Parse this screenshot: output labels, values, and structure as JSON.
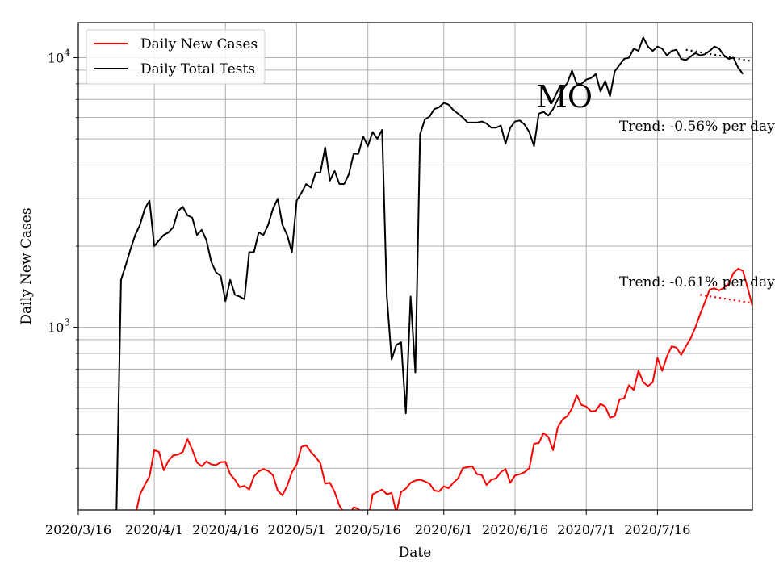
{
  "chart_data": {
    "type": "line",
    "title": "MO",
    "xlabel": "Date",
    "ylabel": "Daily New Cases",
    "yscale": "log",
    "ylim": [
      210,
      13500
    ],
    "xlim": [
      "2020-03-16",
      "2020-08-05"
    ],
    "grid": true,
    "legend_position": "top-left",
    "x_ticks": [
      "2020/3/16",
      "2020/4/1",
      "2020/4/16",
      "2020/5/1",
      "2020/5/16",
      "2020/6/1",
      "2020/6/16",
      "2020/7/1",
      "2020/7/16"
    ],
    "y_ticks": [
      {
        "value": 1000,
        "base": "10",
        "exp": "3"
      },
      {
        "value": 10000,
        "base": "10",
        "exp": "4"
      }
    ],
    "annotations": [
      {
        "text": "Trend: -0.56% per day",
        "anchor_date": "2020-07-24",
        "anchor_value": 4950
      },
      {
        "text": "Trend: -0.61% per day",
        "anchor_date": "2020-07-24",
        "anchor_value": 1150
      }
    ],
    "series": [
      {
        "name": "Daily New Cases",
        "color": "#ff0000",
        "points": [
          [
            "2020-03-28",
            200
          ],
          [
            "2020-03-29",
            240
          ],
          [
            "2020-03-30",
            260
          ],
          [
            "2020-03-31",
            280
          ],
          [
            "2020-04-01",
            350
          ],
          [
            "2020-04-02",
            345
          ],
          [
            "2020-04-03",
            295
          ],
          [
            "2020-04-04",
            320
          ],
          [
            "2020-04-05",
            335
          ],
          [
            "2020-04-06",
            337
          ],
          [
            "2020-04-07",
            345
          ],
          [
            "2020-04-08",
            385
          ],
          [
            "2020-04-09",
            352
          ],
          [
            "2020-04-10",
            315
          ],
          [
            "2020-04-11",
            305
          ],
          [
            "2020-04-12",
            318
          ],
          [
            "2020-04-13",
            310
          ],
          [
            "2020-04-14",
            308
          ],
          [
            "2020-04-15",
            316
          ],
          [
            "2020-04-16",
            317
          ],
          [
            "2020-04-17",
            285
          ],
          [
            "2020-04-18",
            272
          ],
          [
            "2020-04-19",
            255
          ],
          [
            "2020-04-20",
            258
          ],
          [
            "2020-04-21",
            250
          ],
          [
            "2020-04-22",
            280
          ],
          [
            "2020-04-23",
            292
          ],
          [
            "2020-04-24",
            298
          ],
          [
            "2020-04-25",
            293
          ],
          [
            "2020-04-26",
            283
          ],
          [
            "2020-04-27",
            248
          ],
          [
            "2020-04-28",
            238
          ],
          [
            "2020-04-29",
            258
          ],
          [
            "2020-04-30",
            290
          ],
          [
            "2020-05-01",
            310
          ],
          [
            "2020-05-02",
            360
          ],
          [
            "2020-05-03",
            365
          ],
          [
            "2020-05-04",
            345
          ],
          [
            "2020-05-05",
            330
          ],
          [
            "2020-05-06",
            313
          ],
          [
            "2020-05-07",
            263
          ],
          [
            "2020-05-08",
            265
          ],
          [
            "2020-05-09",
            245
          ],
          [
            "2020-05-10",
            218
          ],
          [
            "2020-05-11",
            205
          ],
          [
            "2020-05-12",
            200
          ],
          [
            "2020-05-13",
            215
          ],
          [
            "2020-05-14",
            212
          ],
          [
            "2020-05-15",
            198
          ],
          [
            "2020-05-16",
            190
          ],
          [
            "2020-05-17",
            240
          ],
          [
            "2020-05-18",
            245
          ],
          [
            "2020-05-19",
            250
          ],
          [
            "2020-05-20",
            240
          ],
          [
            "2020-05-21",
            243
          ],
          [
            "2020-05-22",
            205
          ],
          [
            "2020-05-23",
            245
          ],
          [
            "2020-05-24",
            252
          ],
          [
            "2020-05-25",
            265
          ],
          [
            "2020-05-26",
            270
          ],
          [
            "2020-05-27",
            272
          ],
          [
            "2020-05-28",
            268
          ],
          [
            "2020-05-29",
            263
          ],
          [
            "2020-05-30",
            248
          ],
          [
            "2020-05-31",
            246
          ],
          [
            "2020-06-01",
            257
          ],
          [
            "2020-06-02",
            253
          ],
          [
            "2020-06-03",
            265
          ],
          [
            "2020-06-04",
            275
          ],
          [
            "2020-06-05",
            300
          ],
          [
            "2020-06-06",
            303
          ],
          [
            "2020-06-07",
            305
          ],
          [
            "2020-06-08",
            285
          ],
          [
            "2020-06-09",
            283
          ],
          [
            "2020-06-10",
            260
          ],
          [
            "2020-06-11",
            272
          ],
          [
            "2020-06-12",
            275
          ],
          [
            "2020-06-13",
            290
          ],
          [
            "2020-06-14",
            298
          ],
          [
            "2020-06-15",
            265
          ],
          [
            "2020-06-16",
            282
          ],
          [
            "2020-06-17",
            285
          ],
          [
            "2020-06-18",
            290
          ],
          [
            "2020-06-19",
            300
          ],
          [
            "2020-06-20",
            370
          ],
          [
            "2020-06-21",
            372
          ],
          [
            "2020-06-22",
            405
          ],
          [
            "2020-06-23",
            392
          ],
          [
            "2020-06-24",
            350
          ],
          [
            "2020-06-25",
            425
          ],
          [
            "2020-06-26",
            455
          ],
          [
            "2020-06-27",
            468
          ],
          [
            "2020-06-28",
            500
          ],
          [
            "2020-06-29",
            560
          ],
          [
            "2020-06-30",
            515
          ],
          [
            "2020-07-01",
            508
          ],
          [
            "2020-07-02",
            488
          ],
          [
            "2020-07-03",
            490
          ],
          [
            "2020-07-04",
            520
          ],
          [
            "2020-07-05",
            508
          ],
          [
            "2020-07-06",
            462
          ],
          [
            "2020-07-07",
            468
          ],
          [
            "2020-07-08",
            540
          ],
          [
            "2020-07-09",
            545
          ],
          [
            "2020-07-10",
            610
          ],
          [
            "2020-07-11",
            585
          ],
          [
            "2020-07-12",
            690
          ],
          [
            "2020-07-13",
            625
          ],
          [
            "2020-07-14",
            605
          ],
          [
            "2020-07-15",
            625
          ],
          [
            "2020-07-16",
            770
          ],
          [
            "2020-07-17",
            690
          ],
          [
            "2020-07-18",
            780
          ],
          [
            "2020-07-19",
            850
          ],
          [
            "2020-07-20",
            840
          ],
          [
            "2020-07-21",
            790
          ],
          [
            "2020-07-22",
            850
          ],
          [
            "2020-07-23",
            910
          ],
          [
            "2020-07-24",
            1000
          ],
          [
            "2020-07-25",
            1120
          ],
          [
            "2020-07-26",
            1240
          ],
          [
            "2020-07-27",
            1380
          ],
          [
            "2020-07-28",
            1395
          ],
          [
            "2020-07-29",
            1370
          ],
          [
            "2020-07-30",
            1400
          ],
          [
            "2020-07-31",
            1450
          ],
          [
            "2020-08-01",
            1590
          ],
          [
            "2020-08-02",
            1650
          ],
          [
            "2020-08-03",
            1620
          ],
          [
            "2020-08-04",
            1400
          ],
          [
            "2020-08-05",
            1200
          ],
          [
            "2020-08-06",
            1050
          ],
          [
            "2020-08-07",
            950
          ],
          [
            "2020-08-08",
            950
          ]
        ]
      },
      {
        "name": "Daily Total Tests",
        "color": "#000000",
        "points": [
          [
            "2020-03-24",
            190
          ],
          [
            "2020-03-25",
            1500
          ],
          [
            "2020-03-26",
            1700
          ],
          [
            "2020-03-27",
            1950
          ],
          [
            "2020-03-28",
            2200
          ],
          [
            "2020-03-29",
            2400
          ],
          [
            "2020-03-30",
            2750
          ],
          [
            "2020-03-31",
            2950
          ],
          [
            "2020-04-01",
            2000
          ],
          [
            "2020-04-02",
            2100
          ],
          [
            "2020-04-03",
            2200
          ],
          [
            "2020-04-04",
            2250
          ],
          [
            "2020-04-05",
            2350
          ],
          [
            "2020-04-06",
            2700
          ],
          [
            "2020-04-07",
            2800
          ],
          [
            "2020-04-08",
            2600
          ],
          [
            "2020-04-09",
            2550
          ],
          [
            "2020-04-10",
            2200
          ],
          [
            "2020-04-11",
            2300
          ],
          [
            "2020-04-12",
            2100
          ],
          [
            "2020-04-13",
            1750
          ],
          [
            "2020-04-14",
            1600
          ],
          [
            "2020-04-15",
            1550
          ],
          [
            "2020-04-16",
            1250
          ],
          [
            "2020-04-17",
            1500
          ],
          [
            "2020-04-18",
            1320
          ],
          [
            "2020-04-19",
            1300
          ],
          [
            "2020-04-20",
            1270
          ],
          [
            "2020-04-21",
            1900
          ],
          [
            "2020-04-22",
            1900
          ],
          [
            "2020-04-23",
            2250
          ],
          [
            "2020-04-24",
            2200
          ],
          [
            "2020-04-25",
            2400
          ],
          [
            "2020-04-26",
            2750
          ],
          [
            "2020-04-27",
            3000
          ],
          [
            "2020-04-28",
            2400
          ],
          [
            "2020-04-29",
            2200
          ],
          [
            "2020-04-30",
            1900
          ],
          [
            "2020-05-01",
            2950
          ],
          [
            "2020-05-02",
            3150
          ],
          [
            "2020-05-03",
            3400
          ],
          [
            "2020-05-04",
            3300
          ],
          [
            "2020-05-05",
            3750
          ],
          [
            "2020-05-06",
            3750
          ],
          [
            "2020-05-07",
            4650
          ],
          [
            "2020-05-08",
            3500
          ],
          [
            "2020-05-09",
            3800
          ],
          [
            "2020-05-10",
            3400
          ],
          [
            "2020-05-11",
            3400
          ],
          [
            "2020-05-12",
            3700
          ],
          [
            "2020-05-13",
            4400
          ],
          [
            "2020-05-14",
            4400
          ],
          [
            "2020-05-15",
            5100
          ],
          [
            "2020-05-16",
            4700
          ],
          [
            "2020-05-17",
            5300
          ],
          [
            "2020-05-18",
            5000
          ],
          [
            "2020-05-19",
            5400
          ],
          [
            "2020-05-20",
            1300
          ],
          [
            "2020-05-21",
            760
          ],
          [
            "2020-05-22",
            860
          ],
          [
            "2020-05-23",
            880
          ],
          [
            "2020-05-24",
            480
          ],
          [
            "2020-05-25",
            1300
          ],
          [
            "2020-05-26",
            680
          ],
          [
            "2020-05-27",
            5200
          ],
          [
            "2020-05-28",
            5900
          ],
          [
            "2020-05-29",
            6050
          ],
          [
            "2020-05-30",
            6450
          ],
          [
            "2020-05-31",
            6550
          ],
          [
            "2020-06-01",
            6800
          ],
          [
            "2020-06-02",
            6700
          ],
          [
            "2020-06-03",
            6400
          ],
          [
            "2020-06-04",
            6200
          ],
          [
            "2020-06-05",
            6000
          ],
          [
            "2020-06-06",
            5750
          ],
          [
            "2020-06-07",
            5750
          ],
          [
            "2020-06-08",
            5750
          ],
          [
            "2020-06-09",
            5800
          ],
          [
            "2020-06-10",
            5700
          ],
          [
            "2020-06-11",
            5500
          ],
          [
            "2020-06-12",
            5500
          ],
          [
            "2020-06-13",
            5600
          ],
          [
            "2020-06-14",
            4800
          ],
          [
            "2020-06-15",
            5500
          ],
          [
            "2020-06-16",
            5800
          ],
          [
            "2020-06-17",
            5850
          ],
          [
            "2020-06-18",
            5650
          ],
          [
            "2020-06-19",
            5300
          ],
          [
            "2020-06-20",
            4700
          ],
          [
            "2020-06-21",
            6200
          ],
          [
            "2020-06-22",
            6300
          ],
          [
            "2020-06-23",
            6100
          ],
          [
            "2020-06-24",
            6450
          ],
          [
            "2020-06-25",
            7000
          ],
          [
            "2020-06-26",
            7600
          ],
          [
            "2020-06-27",
            8050
          ],
          [
            "2020-06-28",
            8950
          ],
          [
            "2020-06-29",
            8000
          ],
          [
            "2020-06-30",
            8000
          ],
          [
            "2020-07-01",
            8300
          ],
          [
            "2020-07-02",
            8400
          ],
          [
            "2020-07-03",
            8700
          ],
          [
            "2020-07-04",
            7500
          ],
          [
            "2020-07-05",
            8200
          ],
          [
            "2020-07-06",
            7200
          ],
          [
            "2020-07-07",
            8900
          ],
          [
            "2020-07-08",
            9400
          ],
          [
            "2020-07-09",
            9900
          ],
          [
            "2020-07-10",
            10000
          ],
          [
            "2020-07-11",
            10800
          ],
          [
            "2020-07-12",
            10600
          ],
          [
            "2020-07-13",
            11900
          ],
          [
            "2020-07-14",
            11000
          ],
          [
            "2020-07-15",
            10600
          ],
          [
            "2020-07-16",
            11000
          ],
          [
            "2020-07-17",
            10800
          ],
          [
            "2020-07-18",
            10200
          ],
          [
            "2020-07-19",
            10600
          ],
          [
            "2020-07-20",
            10700
          ],
          [
            "2020-07-21",
            9900
          ],
          [
            "2020-07-22",
            9800
          ],
          [
            "2020-07-23",
            10100
          ],
          [
            "2020-07-24",
            10400
          ],
          [
            "2020-07-25",
            10200
          ],
          [
            "2020-07-26",
            10300
          ],
          [
            "2020-07-27",
            10600
          ],
          [
            "2020-07-28",
            11000
          ],
          [
            "2020-07-29",
            10800
          ],
          [
            "2020-07-30",
            10200
          ],
          [
            "2020-07-31",
            9900
          ],
          [
            "2020-08-01",
            10000
          ],
          [
            "2020-08-02",
            9200
          ],
          [
            "2020-08-03",
            8700
          ]
        ]
      },
      {
        "name": "",
        "color": "#ff0000",
        "style": "dotted",
        "points": [
          [
            "2020-07-25",
            1320
          ],
          [
            "2020-08-05",
            1230
          ]
        ]
      },
      {
        "name": "",
        "color": "#000000",
        "style": "dotted",
        "points": [
          [
            "2020-07-22",
            10700
          ],
          [
            "2020-08-05",
            9700
          ]
        ]
      }
    ]
  }
}
